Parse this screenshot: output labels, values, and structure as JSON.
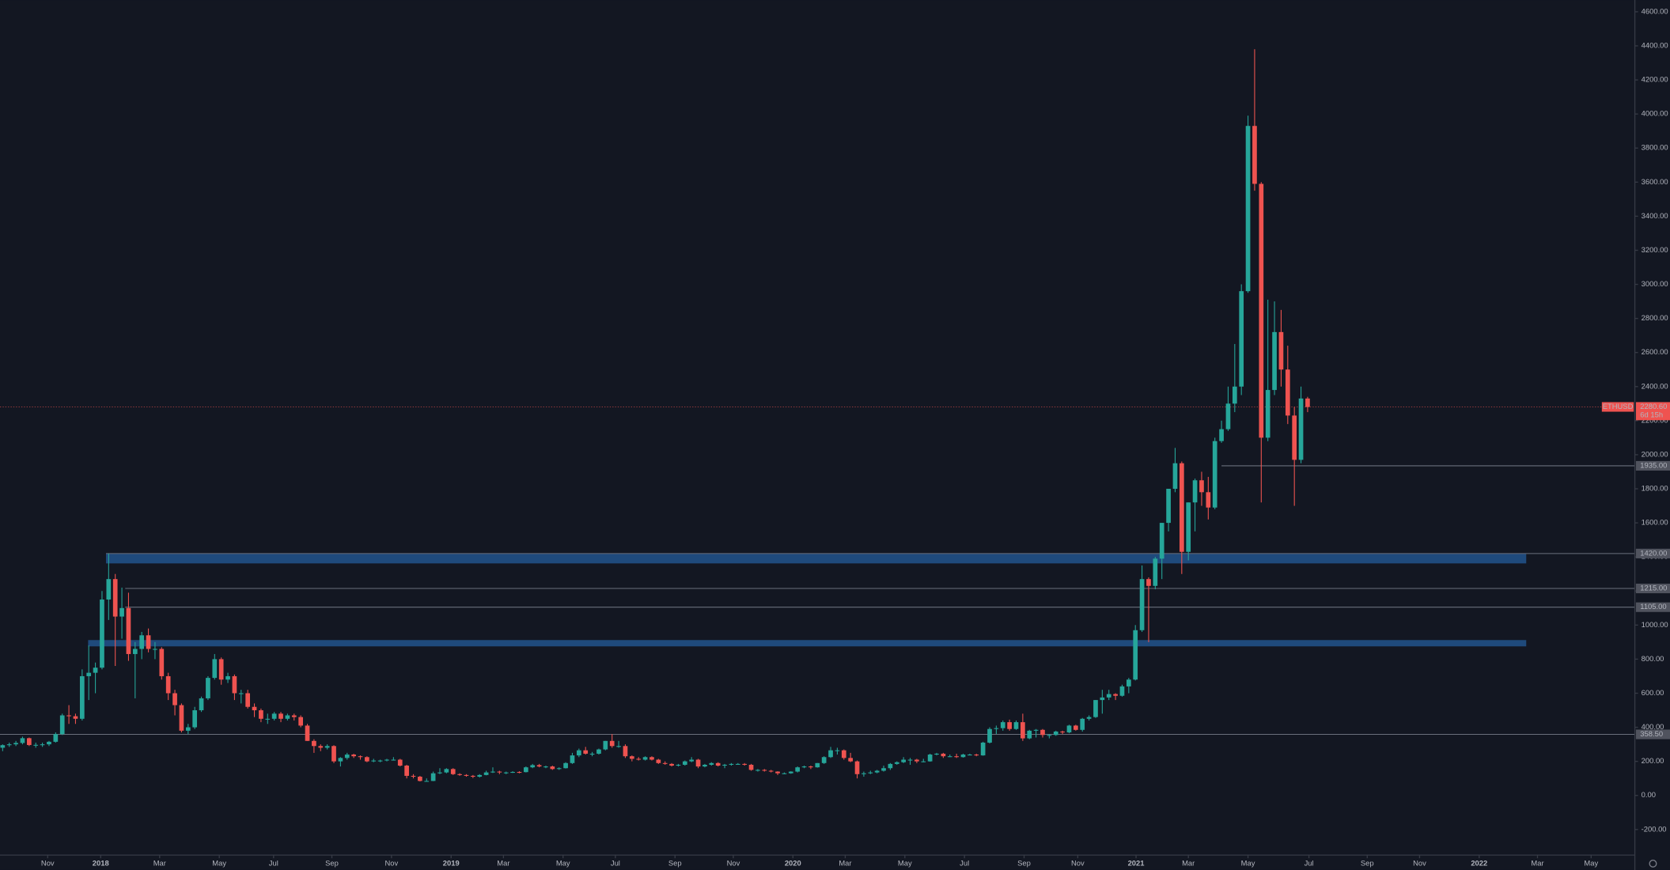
{
  "chart_data": {
    "type": "candlestick",
    "symbol": "ETHUSD",
    "up_color": "#26a69a",
    "down_color": "#ef5350",
    "zone_color": "#1f4a7c",
    "level_color": "#6a6f7c",
    "ylim": [
      -350,
      4669
    ],
    "xlim": [
      -0.4,
      246.4
    ],
    "yticks": [
      {
        "value": -200,
        "label": "-200.00"
      },
      {
        "value": 0,
        "label": "0.00"
      },
      {
        "value": 200,
        "label": "200.00"
      },
      {
        "value": 400,
        "label": "400.00"
      },
      {
        "value": 600,
        "label": "600.00"
      },
      {
        "value": 800,
        "label": "800.00"
      },
      {
        "value": 1000,
        "label": "1000.00"
      },
      {
        "value": 1200,
        "label": "1200.00"
      },
      {
        "value": 1400,
        "label": "1400.00"
      },
      {
        "value": 1600,
        "label": "1600.00"
      },
      {
        "value": 1800,
        "label": "1800.00"
      },
      {
        "value": 2000,
        "label": "2000.00"
      },
      {
        "value": 2200,
        "label": "2200.00"
      },
      {
        "value": 2400,
        "label": "2400.00"
      },
      {
        "value": 2600,
        "label": "2600.00"
      },
      {
        "value": 2800,
        "label": "2800.00"
      },
      {
        "value": 3000,
        "label": "3000.00"
      },
      {
        "value": 3200,
        "label": "3200.00"
      },
      {
        "value": 3400,
        "label": "3400.00"
      },
      {
        "value": 3600,
        "label": "3600.00"
      },
      {
        "value": 3800,
        "label": "3800.00"
      },
      {
        "value": 4000,
        "label": "4000.00"
      },
      {
        "value": 4200,
        "label": "4200.00"
      },
      {
        "value": 4400,
        "label": "4400.00"
      },
      {
        "value": 4600,
        "label": "4600.00"
      }
    ],
    "xticks": [
      {
        "value": 6.8,
        "label": "Nov"
      },
      {
        "value": 14.8,
        "label": "2018"
      },
      {
        "value": 23.7,
        "label": "Mar"
      },
      {
        "value": 32.7,
        "label": "May"
      },
      {
        "value": 40.9,
        "label": "Jul"
      },
      {
        "value": 49.7,
        "label": "Sep"
      },
      {
        "value": 58.7,
        "label": "Nov"
      },
      {
        "value": 67.7,
        "label": "2019"
      },
      {
        "value": 75.6,
        "label": "Mar"
      },
      {
        "value": 84.6,
        "label": "May"
      },
      {
        "value": 92.5,
        "label": "Jul"
      },
      {
        "value": 101.5,
        "label": "Sep"
      },
      {
        "value": 110.3,
        "label": "Nov"
      },
      {
        "value": 119.3,
        "label": "2020"
      },
      {
        "value": 127.2,
        "label": "Mar"
      },
      {
        "value": 136.2,
        "label": "May"
      },
      {
        "value": 145.2,
        "label": "Jul"
      },
      {
        "value": 154.2,
        "label": "Sep"
      },
      {
        "value": 162.3,
        "label": "Nov"
      },
      {
        "value": 171.1,
        "label": "2021"
      },
      {
        "value": 179.0,
        "label": "Mar"
      },
      {
        "value": 188.0,
        "label": "May"
      },
      {
        "value": 197.2,
        "label": "Jul"
      },
      {
        "value": 206.0,
        "label": "Sep"
      },
      {
        "value": 213.9,
        "label": "Nov"
      },
      {
        "value": 222.9,
        "label": "2022"
      },
      {
        "value": 231.7,
        "label": "Mar"
      },
      {
        "value": 239.8,
        "label": "May"
      }
    ],
    "zones": [
      {
        "top": 1419,
        "bottom": 1362,
        "x_start": 15.6,
        "x_end": 230
      },
      {
        "top": 912,
        "bottom": 875,
        "x_start": 12.9,
        "x_end": 230
      }
    ],
    "levels": [
      {
        "value": 1935,
        "label": "1935.00",
        "x_start": 184
      },
      {
        "value": 1420,
        "label": "1420.00",
        "x_start": 15.6
      },
      {
        "value": 1215,
        "label": "1215.00",
        "x_start": 18.5
      },
      {
        "value": 1105,
        "label": "1105.00",
        "x_start": 18.5
      },
      {
        "value": 358.5,
        "label": "358.50",
        "x_start": -0.4
      }
    ],
    "last_price": {
      "value": 2280.6,
      "label": "2280.60",
      "countdown": "6d 15h"
    },
    "ohlc": [
      [
        280,
        300,
        260,
        295
      ],
      [
        295,
        310,
        285,
        300
      ],
      [
        300,
        320,
        290,
        308
      ],
      [
        308,
        345,
        300,
        336
      ],
      [
        336,
        340,
        290,
        296
      ],
      [
        296,
        310,
        280,
        297
      ],
      [
        297,
        310,
        285,
        300
      ],
      [
        300,
        320,
        290,
        315
      ],
      [
        315,
        370,
        310,
        360
      ],
      [
        360,
        480,
        355,
        470
      ],
      [
        470,
        530,
        420,
        465
      ],
      [
        465,
        480,
        420,
        450
      ],
      [
        450,
        740,
        440,
        700
      ],
      [
        700,
        880,
        560,
        720
      ],
      [
        720,
        780,
        600,
        750
      ],
      [
        750,
        1200,
        740,
        1150
      ],
      [
        1150,
        1420,
        1030,
        1270
      ],
      [
        1270,
        1300,
        760,
        1050
      ],
      [
        1050,
        1220,
        920,
        1100
      ],
      [
        1100,
        1190,
        790,
        830
      ],
      [
        830,
        900,
        570,
        860
      ],
      [
        860,
        960,
        800,
        940
      ],
      [
        940,
        980,
        840,
        860
      ],
      [
        860,
        900,
        800,
        860
      ],
      [
        860,
        870,
        680,
        700
      ],
      [
        700,
        720,
        560,
        600
      ],
      [
        600,
        620,
        470,
        530
      ],
      [
        530,
        540,
        370,
        380
      ],
      [
        380,
        420,
        360,
        400
      ],
      [
        400,
        520,
        390,
        500
      ],
      [
        500,
        580,
        490,
        570
      ],
      [
        570,
        700,
        560,
        690
      ],
      [
        690,
        830,
        680,
        800
      ],
      [
        800,
        810,
        650,
        680
      ],
      [
        680,
        720,
        660,
        700
      ],
      [
        700,
        710,
        560,
        600
      ],
      [
        600,
        620,
        540,
        600
      ],
      [
        600,
        620,
        510,
        520
      ],
      [
        520,
        540,
        460,
        500
      ],
      [
        500,
        510,
        430,
        450
      ],
      [
        450,
        480,
        420,
        450
      ],
      [
        450,
        490,
        440,
        480
      ],
      [
        480,
        490,
        430,
        450
      ],
      [
        450,
        480,
        440,
        470
      ],
      [
        470,
        480,
        440,
        460
      ],
      [
        460,
        470,
        400,
        410
      ],
      [
        410,
        420,
        320,
        320
      ],
      [
        320,
        330,
        250,
        290
      ],
      [
        290,
        300,
        260,
        280
      ],
      [
        280,
        300,
        270,
        290
      ],
      [
        290,
        295,
        190,
        200
      ],
      [
        200,
        225,
        170,
        220
      ],
      [
        220,
        250,
        210,
        240
      ],
      [
        240,
        245,
        220,
        230
      ],
      [
        230,
        235,
        210,
        225
      ],
      [
        225,
        230,
        195,
        200
      ],
      [
        200,
        215,
        195,
        205
      ],
      [
        205,
        210,
        195,
        205
      ],
      [
        205,
        215,
        200,
        210
      ],
      [
        210,
        225,
        205,
        210
      ],
      [
        210,
        215,
        170,
        175
      ],
      [
        175,
        180,
        100,
        115
      ],
      [
        115,
        125,
        100,
        110
      ],
      [
        110,
        115,
        82,
        85
      ],
      [
        85,
        100,
        82,
        85
      ],
      [
        85,
        140,
        84,
        130
      ],
      [
        130,
        160,
        125,
        135
      ],
      [
        135,
        160,
        130,
        155
      ],
      [
        155,
        160,
        120,
        125
      ],
      [
        125,
        130,
        115,
        120
      ],
      [
        120,
        125,
        110,
        115
      ],
      [
        115,
        120,
        102,
        110
      ],
      [
        110,
        125,
        105,
        120
      ],
      [
        120,
        145,
        118,
        135
      ],
      [
        135,
        165,
        132,
        140
      ],
      [
        140,
        145,
        125,
        135
      ],
      [
        135,
        140,
        125,
        135
      ],
      [
        135,
        142,
        132,
        138
      ],
      [
        138,
        142,
        130,
        137
      ],
      [
        137,
        170,
        135,
        165
      ],
      [
        165,
        185,
        160,
        178
      ],
      [
        178,
        185,
        165,
        170
      ],
      [
        170,
        175,
        160,
        170
      ],
      [
        170,
        175,
        150,
        155
      ],
      [
        155,
        165,
        150,
        160
      ],
      [
        160,
        195,
        158,
        190
      ],
      [
        190,
        250,
        185,
        235
      ],
      [
        235,
        275,
        225,
        265
      ],
      [
        265,
        285,
        240,
        245
      ],
      [
        245,
        255,
        230,
        245
      ],
      [
        245,
        275,
        240,
        270
      ],
      [
        270,
        320,
        265,
        320
      ],
      [
        320,
        360,
        280,
        290
      ],
      [
        290,
        320,
        280,
        290
      ],
      [
        290,
        300,
        220,
        230
      ],
      [
        230,
        235,
        200,
        215
      ],
      [
        215,
        225,
        205,
        210
      ],
      [
        210,
        230,
        205,
        225
      ],
      [
        225,
        230,
        205,
        210
      ],
      [
        210,
        215,
        185,
        190
      ],
      [
        190,
        200,
        180,
        185
      ],
      [
        185,
        190,
        170,
        175
      ],
      [
        175,
        185,
        170,
        180
      ],
      [
        180,
        205,
        175,
        200
      ],
      [
        200,
        225,
        195,
        210
      ],
      [
        210,
        215,
        160,
        170
      ],
      [
        170,
        185,
        165,
        180
      ],
      [
        180,
        195,
        175,
        190
      ],
      [
        190,
        195,
        170,
        175
      ],
      [
        175,
        185,
        160,
        180
      ],
      [
        180,
        190,
        175,
        185
      ],
      [
        185,
        190,
        180,
        185
      ],
      [
        185,
        190,
        175,
        180
      ],
      [
        180,
        185,
        145,
        150
      ],
      [
        150,
        155,
        140,
        150
      ],
      [
        150,
        155,
        140,
        145
      ],
      [
        145,
        150,
        135,
        140
      ],
      [
        140,
        142,
        120,
        130
      ],
      [
        130,
        135,
        125,
        130
      ],
      [
        130,
        142,
        127,
        140
      ],
      [
        140,
        170,
        135,
        165
      ],
      [
        165,
        175,
        160,
        170
      ],
      [
        170,
        175,
        155,
        165
      ],
      [
        165,
        190,
        163,
        190
      ],
      [
        190,
        230,
        185,
        225
      ],
      [
        225,
        285,
        220,
        265
      ],
      [
        265,
        280,
        240,
        265
      ],
      [
        265,
        270,
        210,
        220
      ],
      [
        220,
        250,
        195,
        200
      ],
      [
        200,
        205,
        100,
        125
      ],
      [
        125,
        140,
        110,
        130
      ],
      [
        130,
        145,
        125,
        135
      ],
      [
        135,
        150,
        130,
        145
      ],
      [
        145,
        175,
        140,
        160
      ],
      [
        160,
        190,
        150,
        185
      ],
      [
        185,
        200,
        180,
        195
      ],
      [
        195,
        225,
        190,
        210
      ],
      [
        210,
        220,
        180,
        210
      ],
      [
        210,
        215,
        190,
        200
      ],
      [
        200,
        215,
        195,
        200
      ],
      [
        200,
        245,
        198,
        240
      ],
      [
        240,
        250,
        235,
        245
      ],
      [
        245,
        250,
        220,
        230
      ],
      [
        230,
        240,
        225,
        230
      ],
      [
        230,
        245,
        220,
        225
      ],
      [
        225,
        245,
        222,
        240
      ],
      [
        240,
        245,
        235,
        240
      ],
      [
        240,
        245,
        230,
        235
      ],
      [
        235,
        315,
        233,
        310
      ],
      [
        310,
        400,
        305,
        390
      ],
      [
        390,
        410,
        360,
        395
      ],
      [
        395,
        440,
        380,
        430
      ],
      [
        430,
        445,
        380,
        390
      ],
      [
        390,
        440,
        385,
        430
      ],
      [
        430,
        480,
        320,
        335
      ],
      [
        335,
        385,
        330,
        380
      ],
      [
        380,
        390,
        340,
        385
      ],
      [
        385,
        390,
        340,
        355
      ],
      [
        355,
        360,
        335,
        355
      ],
      [
        355,
        380,
        350,
        375
      ],
      [
        375,
        380,
        360,
        370
      ],
      [
        370,
        415,
        365,
        410
      ],
      [
        410,
        415,
        380,
        385
      ],
      [
        385,
        455,
        375,
        450
      ],
      [
        450,
        470,
        440,
        460
      ],
      [
        460,
        560,
        455,
        560
      ],
      [
        560,
        620,
        480,
        575
      ],
      [
        575,
        620,
        560,
        595
      ],
      [
        595,
        600,
        560,
        585
      ],
      [
        585,
        650,
        580,
        640
      ],
      [
        640,
        690,
        600,
        680
      ],
      [
        680,
        1000,
        675,
        970
      ],
      [
        970,
        1350,
        960,
        1270
      ],
      [
        1270,
        1280,
        900,
        1230
      ],
      [
        1230,
        1400,
        1210,
        1390
      ],
      [
        1390,
        1600,
        1270,
        1600
      ],
      [
        1600,
        1800,
        1550,
        1800
      ],
      [
        1800,
        2040,
        1780,
        1950
      ],
      [
        1950,
        1960,
        1300,
        1430
      ],
      [
        1430,
        1720,
        1380,
        1720
      ],
      [
        1720,
        1860,
        1550,
        1850
      ],
      [
        1850,
        1900,
        1700,
        1780
      ],
      [
        1780,
        1870,
        1620,
        1690
      ],
      [
        1690,
        2100,
        1680,
        2080
      ],
      [
        2080,
        2200,
        2070,
        2150
      ],
      [
        2150,
        2400,
        2140,
        2300
      ],
      [
        2300,
        2650,
        2250,
        2400
      ],
      [
        2400,
        3000,
        2350,
        2960
      ],
      [
        2960,
        3990,
        2950,
        3930
      ],
      [
        3930,
        4380,
        3550,
        3590
      ],
      [
        3590,
        3600,
        1720,
        2100
      ],
      [
        2100,
        2910,
        2080,
        2380
      ],
      [
        2380,
        2900,
        2350,
        2720
      ],
      [
        2720,
        2850,
        2400,
        2500
      ],
      [
        2500,
        2640,
        2180,
        2230
      ],
      [
        2230,
        2280,
        1700,
        1970
      ],
      [
        1970,
        2400,
        1950,
        2330
      ],
      [
        2330,
        2340,
        2250,
        2280
      ]
    ]
  }
}
